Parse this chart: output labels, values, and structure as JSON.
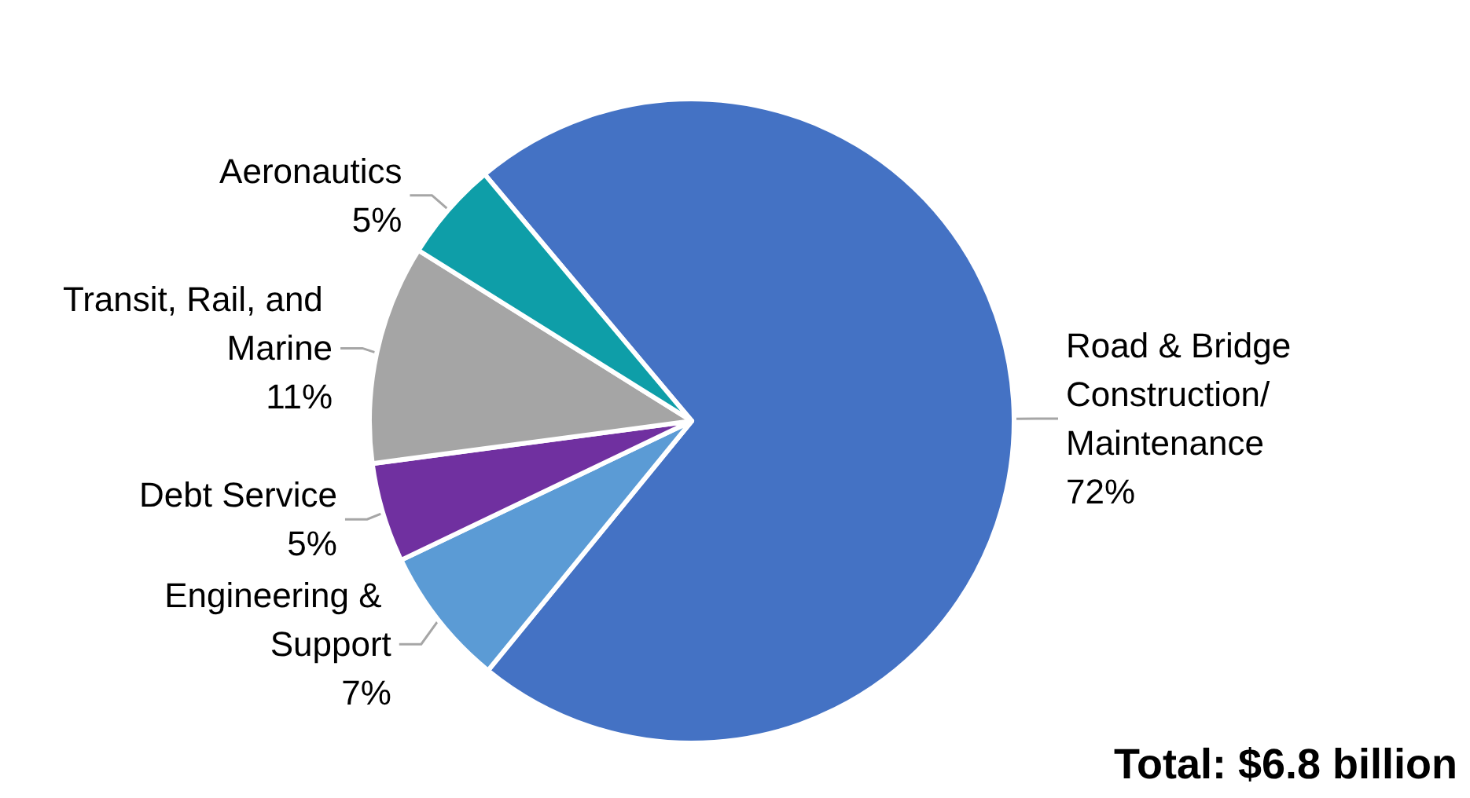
{
  "chart_data": {
    "type": "pie",
    "categories": [
      "Road & Bridge Construction/Maintenance",
      "Engineering & Support",
      "Debt Service",
      "Transit, Rail, and Marine",
      "Aeronautics"
    ],
    "values": [
      72,
      7,
      5,
      11,
      5
    ],
    "value_labels": [
      "72%",
      "7%",
      "5%",
      "11%",
      "5%"
    ],
    "colors": [
      "#4472c4",
      "#5b9bd5",
      "#7030a0",
      "#a5a5a5",
      "#0e9ea8"
    ],
    "annotations": [
      "Total: $6.8 billion"
    ]
  }
}
